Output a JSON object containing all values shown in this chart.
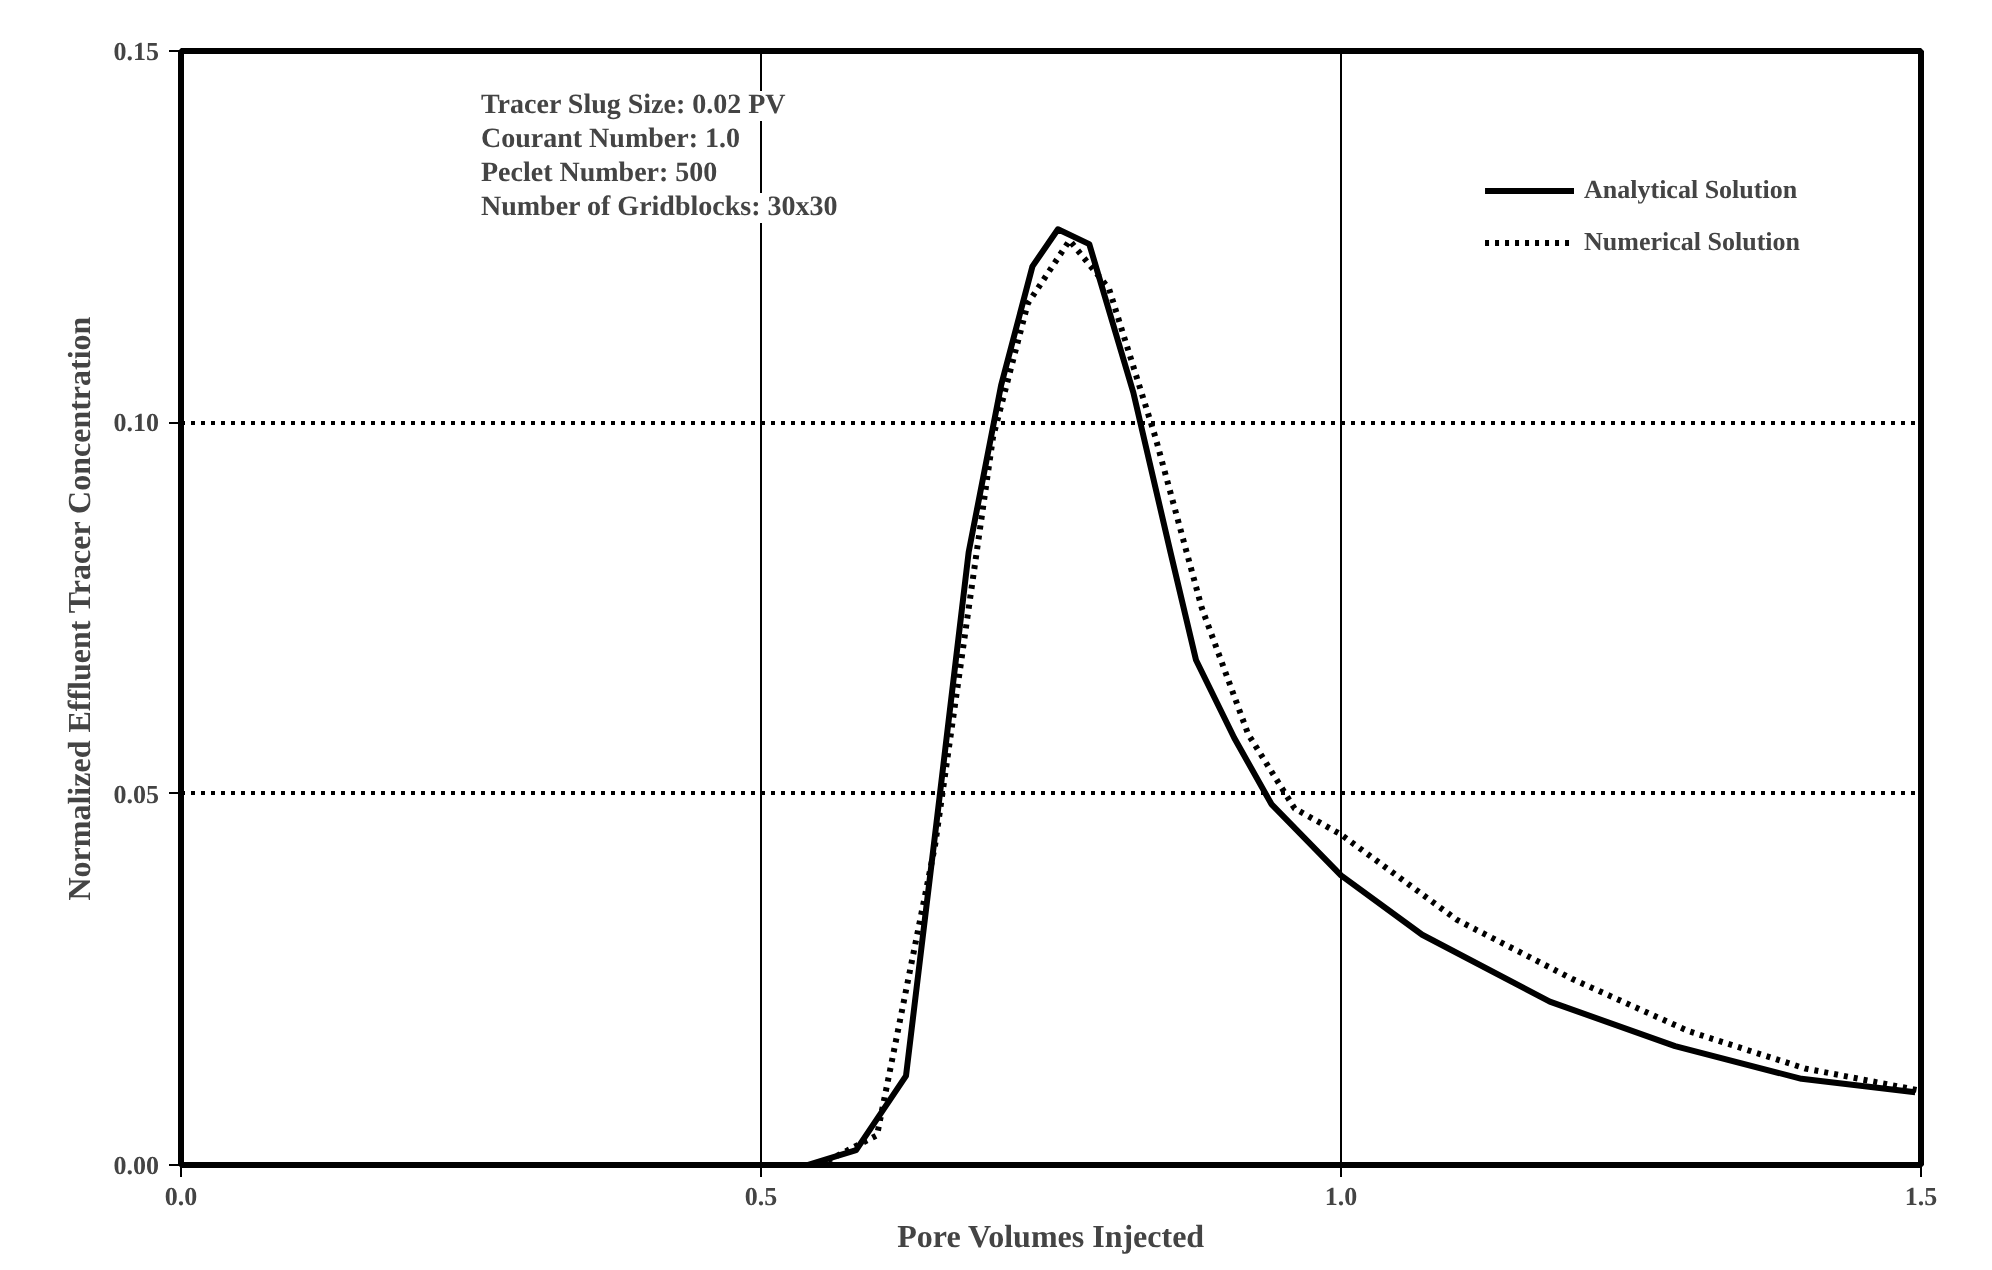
{
  "chart_data": {
    "type": "line",
    "xlabel": "Pore Volumes Injected",
    "ylabel": "Normalized Effluent Tracer Concentration",
    "xlim": [
      0.0,
      1.5
    ],
    "ylim": [
      0.0,
      0.15
    ],
    "xticks": [
      {
        "value": 0,
        "label": "0.0"
      },
      0.5,
      {
        "value": 1,
        "label": "1.0"
      },
      1.5
    ],
    "yticks": [
      {
        "value": 0,
        "label": "0.00"
      },
      0.05,
      {
        "value": 0.1,
        "label": "0.10"
      },
      0.15
    ],
    "grid": true,
    "legend": "top right",
    "marker": "none",
    "annotations": [
      "Tracer Slug Size: 0.02 PV",
      "Courant Number: 1.0",
      "Peclet Number: 500",
      "Number of Gridblocks: 30x30"
    ],
    "series": [
      {
        "name": "Analytical Solution",
        "color": "#000000",
        "line_style": "solid",
        "x": [
          0.54,
          0.582,
          0.625,
          0.652,
          0.679,
          0.707,
          0.734,
          0.756,
          0.783,
          0.821,
          0.853,
          0.875,
          0.908,
          0.94,
          1.0,
          1.07,
          1.18,
          1.288,
          1.397,
          1.495
        ],
        "values": [
          0.0,
          0.002,
          0.012,
          0.047,
          0.0825,
          0.105,
          0.121,
          0.126,
          0.124,
          0.104,
          0.0825,
          0.068,
          0.0575,
          0.0486,
          0.039,
          0.031,
          0.022,
          0.016,
          0.0116,
          0.0098
        ]
      },
      {
        "name": "Numerical Solution",
        "color": "#000000",
        "line_style": "dotted",
        "x": [
          0.55,
          0.6,
          0.65,
          0.7,
          0.73,
          0.766,
          0.8,
          0.84,
          0.88,
          0.92,
          0.96,
          1.0,
          1.1,
          1.2,
          1.3,
          1.4,
          1.5
        ],
        "values": [
          0.0,
          0.004,
          0.043,
          0.098,
          0.116,
          0.1245,
          0.118,
          0.098,
          0.075,
          0.058,
          0.048,
          0.0445,
          0.033,
          0.025,
          0.018,
          0.013,
          0.01
        ]
      }
    ]
  }
}
